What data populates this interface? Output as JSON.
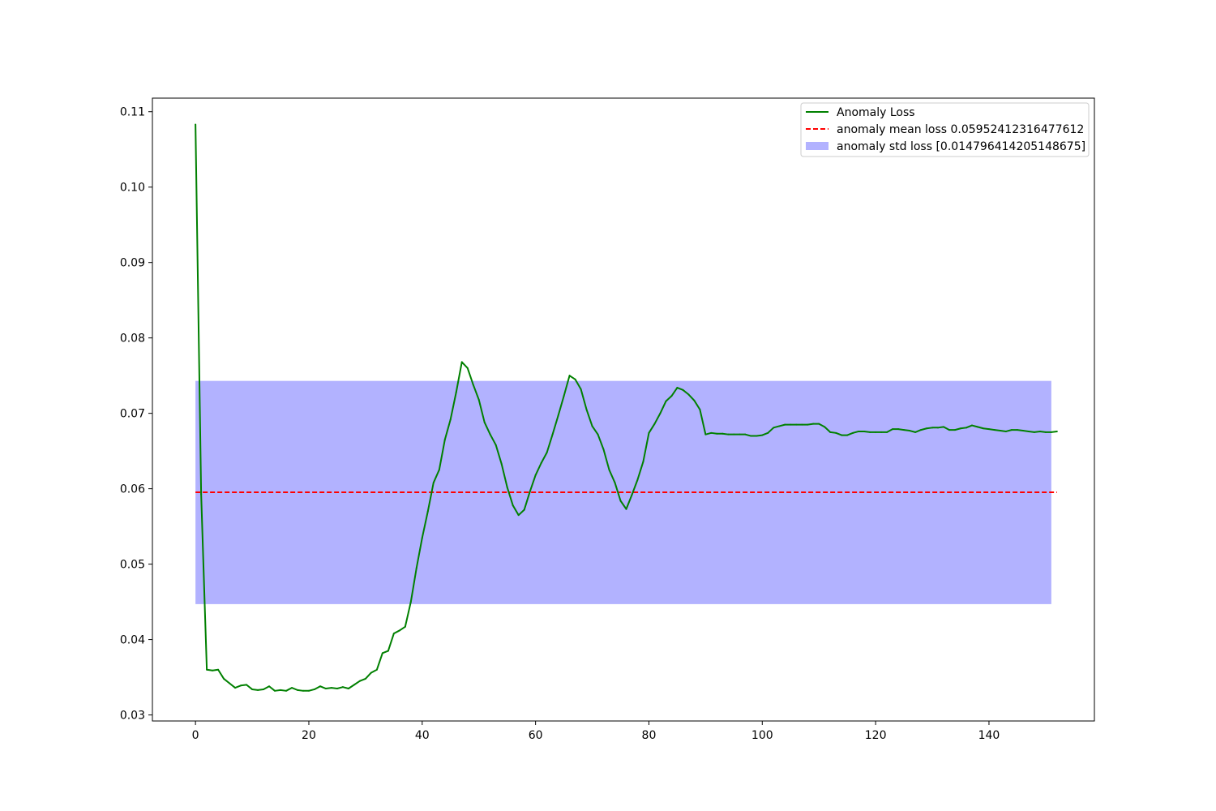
{
  "chart_data": {
    "type": "line",
    "title": "",
    "xlabel": "",
    "ylabel": "",
    "xlim": [
      -7.6,
      158.6
    ],
    "ylim": [
      0.0292,
      0.1118
    ],
    "x_ticks": [
      0,
      20,
      40,
      60,
      80,
      100,
      120,
      140
    ],
    "y_ticks": [
      0.03,
      0.04,
      0.05,
      0.06,
      0.07,
      0.08,
      0.09,
      0.1,
      0.11
    ],
    "x_tick_labels": [
      "0",
      "20",
      "40",
      "60",
      "80",
      "100",
      "120",
      "140"
    ],
    "y_tick_labels": [
      "0.03",
      "0.04",
      "0.05",
      "0.06",
      "0.07",
      "0.08",
      "0.09",
      "0.10",
      "0.11"
    ],
    "grid": false,
    "legend_position": "top-right",
    "series": [
      {
        "name": "Anomaly Loss",
        "color": "#008000",
        "style": "solid",
        "values": [
          0.1083,
          0.0593,
          0.036,
          0.0359,
          0.036,
          0.0348,
          0.0342,
          0.0336,
          0.0339,
          0.034,
          0.0334,
          0.0333,
          0.0334,
          0.0338,
          0.0332,
          0.0333,
          0.0332,
          0.0336,
          0.0333,
          0.0332,
          0.0332,
          0.0334,
          0.0338,
          0.0335,
          0.0336,
          0.0335,
          0.0337,
          0.0335,
          0.034,
          0.0345,
          0.0348,
          0.0356,
          0.036,
          0.0382,
          0.0385,
          0.0408,
          0.0412,
          0.0417,
          0.045,
          0.0495,
          0.0535,
          0.057,
          0.0608,
          0.0625,
          0.0665,
          0.0692,
          0.0728,
          0.0768,
          0.076,
          0.0738,
          0.0718,
          0.0688,
          0.0672,
          0.0658,
          0.0633,
          0.0602,
          0.0578,
          0.0565,
          0.0572,
          0.0596,
          0.0618,
          0.0634,
          0.0648,
          0.0672,
          0.0697,
          0.0723,
          0.075,
          0.0745,
          0.0732,
          0.0705,
          0.0683,
          0.0672,
          0.0652,
          0.0625,
          0.0608,
          0.0584,
          0.0573,
          0.0592,
          0.0612,
          0.0636,
          0.0674,
          0.0686,
          0.07,
          0.0716,
          0.0723,
          0.0734,
          0.0731,
          0.0725,
          0.0717,
          0.0705,
          0.0672,
          0.0674,
          0.0673,
          0.0673,
          0.0672,
          0.0672,
          0.0672,
          0.0672,
          0.067,
          0.067,
          0.0671,
          0.0674,
          0.0681,
          0.0683,
          0.0685,
          0.0685,
          0.0685,
          0.0685,
          0.0685,
          0.0686,
          0.0686,
          0.0682,
          0.0675,
          0.0674,
          0.0671,
          0.0671,
          0.0674,
          0.0676,
          0.0676,
          0.0675,
          0.0675,
          0.0675,
          0.0675,
          0.0679,
          0.0679,
          0.0678,
          0.0677,
          0.0675,
          0.0678,
          0.068,
          0.0681,
          0.0681,
          0.0682,
          0.0678,
          0.0678,
          0.068,
          0.0681,
          0.0684,
          0.0682,
          0.068,
          0.0679,
          0.0678,
          0.0677,
          0.0676,
          0.0678,
          0.0678,
          0.0677,
          0.0676,
          0.0675,
          0.0676,
          0.0675,
          0.0675,
          0.0676
        ]
      }
    ],
    "mean_line": {
      "name": "anomaly mean loss 0.05952412316477612",
      "value": 0.05952412316477612,
      "color": "#ff0000",
      "style": "dashed"
    },
    "std_band": {
      "name": "anomaly std loss [0.014796414205148675]",
      "low": 0.0447,
      "high": 0.0743,
      "x_range": [
        0,
        151
      ],
      "color": "#b2b2ff"
    }
  }
}
